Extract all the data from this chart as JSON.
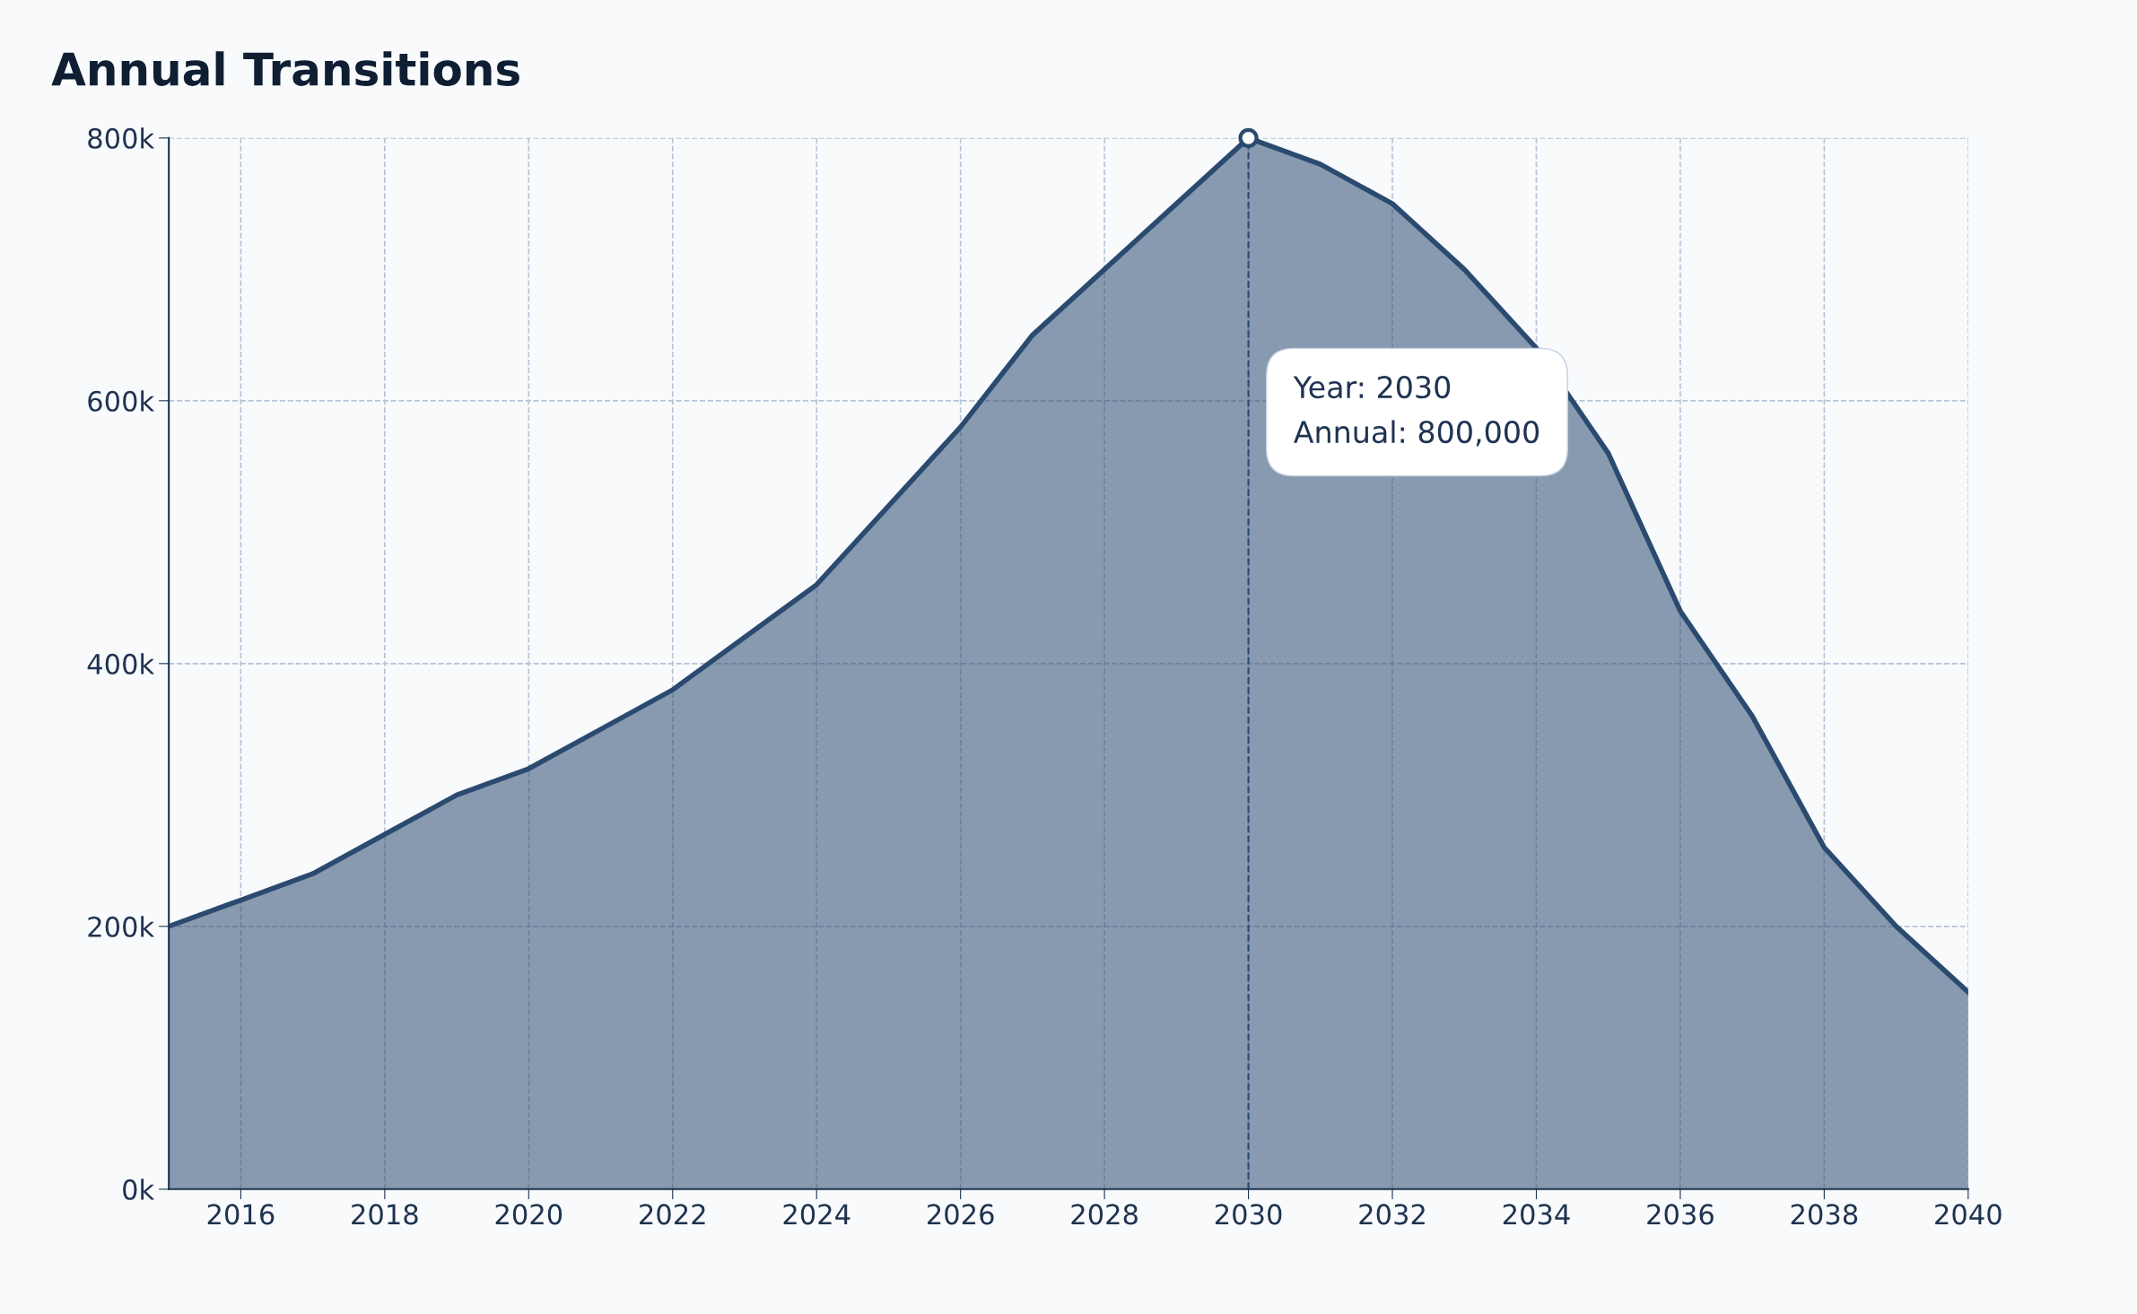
{
  "chart_data": {
    "type": "area",
    "title": "Annual Transitions",
    "x": [
      2015,
      2016,
      2017,
      2018,
      2019,
      2020,
      2021,
      2022,
      2023,
      2024,
      2025,
      2026,
      2027,
      2028,
      2029,
      2030,
      2031,
      2032,
      2033,
      2034,
      2035,
      2036,
      2037,
      2038,
      2039,
      2040
    ],
    "series": [
      {
        "color": "#2b4a70",
        "values": [
          200000,
          220000,
          240000,
          270000,
          300000,
          320000,
          350000,
          380000,
          420000,
          460000,
          520000,
          580000,
          650000,
          700000,
          750000,
          800000,
          780000,
          750000,
          700000,
          640000,
          560000,
          440000,
          360000,
          260000,
          200000,
          150000
        ]
      }
    ],
    "xlim": [
      2015,
      2040
    ],
    "xticks": [
      2016,
      2018,
      2020,
      2022,
      2024,
      2026,
      2028,
      2030,
      2032,
      2034,
      2036,
      2038,
      2040
    ],
    "ylim": [
      0,
      800000
    ],
    "yticks": [
      {
        "value": 0,
        "label": "0k"
      },
      {
        "value": 200000,
        "label": "200k"
      },
      {
        "value": 400000,
        "label": "400k"
      },
      {
        "value": 600000,
        "label": "600k"
      },
      {
        "value": 800000,
        "label": "800k"
      }
    ],
    "grid": true,
    "ref_lines": [
      {
        "axis": "x",
        "value": 2030,
        "color": "#2b4a70",
        "line_style": "dashed"
      }
    ],
    "annotations": [
      "Year: 2030\nAnnual: 800,000"
    ]
  }
}
